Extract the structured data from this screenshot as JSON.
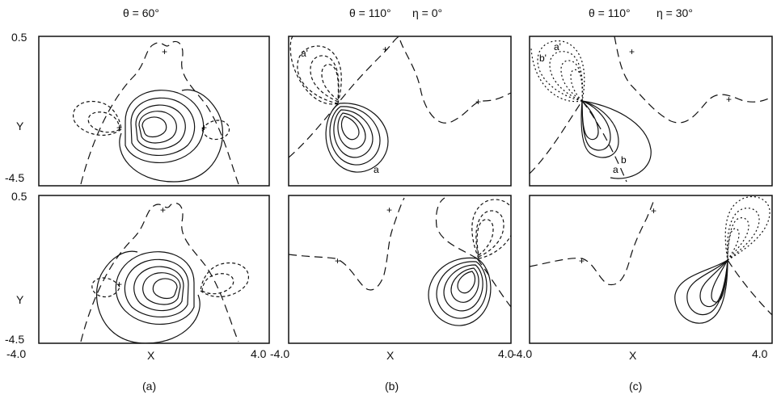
{
  "columns": [
    {
      "theta": "θ = 60°",
      "eta": "",
      "caption": "(a)"
    },
    {
      "theta": "θ = 110°",
      "eta": "η = 0°",
      "caption": "(b)"
    },
    {
      "theta": "θ = 110°",
      "eta": "η = 30°",
      "caption": "(c)"
    }
  ],
  "axes": {
    "y_label": "Y",
    "x_label": "X",
    "y_top": "0.5",
    "y_bottom": "-4.5",
    "x_left": "-4.0",
    "x_right": "4.0"
  },
  "annotations": {
    "b_a_prime": "a'",
    "b_a": "a",
    "c_a_prime": "a'",
    "c_b_prime": "b'",
    "c_a": "a",
    "c_b": "b"
  },
  "plus": "+"
}
